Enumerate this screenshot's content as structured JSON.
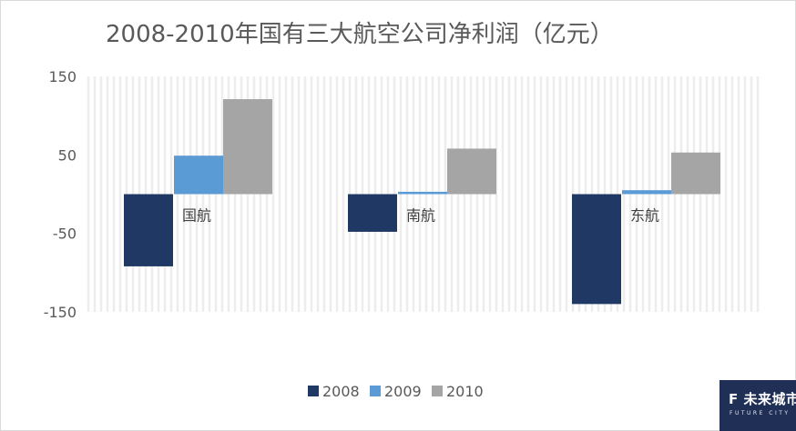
{
  "chart_data": {
    "type": "bar",
    "title": "2008-2010年国有三大航空公司净利润（亿元）",
    "categories": [
      "国航",
      "南航",
      "东航"
    ],
    "series": [
      {
        "name": "2008",
        "color": "#1f3864",
        "values": [
          -92,
          -48,
          -140
        ]
      },
      {
        "name": "2009",
        "color": "#5b9bd5",
        "values": [
          49,
          3,
          5
        ]
      },
      {
        "name": "2010",
        "color": "#a5a5a5",
        "values": [
          121,
          58,
          53
        ]
      }
    ],
    "y_ticks": [
      "150",
      "50",
      "-50",
      "-150"
    ],
    "ylim": [
      -150,
      150
    ],
    "grid": "vertical hatch",
    "legend_position": "bottom"
  },
  "logo": {
    "text": "F 未来城市",
    "subtext": "FUTURE CITY"
  }
}
